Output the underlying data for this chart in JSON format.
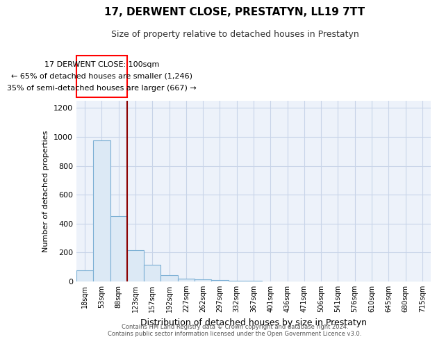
{
  "title": "17, DERWENT CLOSE, PRESTATYN, LL19 7TT",
  "subtitle": "Size of property relative to detached houses in Prestatyn",
  "xlabel": "Distribution of detached houses by size in Prestatyn",
  "ylabel": "Number of detached properties",
  "annotation_line1": "17 DERWENT CLOSE: 100sqm",
  "annotation_line2": "← 65% of detached houses are smaller (1,246)",
  "annotation_line3": "35% of semi-detached houses are larger (667) →",
  "bar_labels": [
    "18sqm",
    "53sqm",
    "88sqm",
    "123sqm",
    "157sqm",
    "192sqm",
    "227sqm",
    "262sqm",
    "297sqm",
    "332sqm",
    "367sqm",
    "401sqm",
    "436sqm",
    "471sqm",
    "506sqm",
    "541sqm",
    "576sqm",
    "610sqm",
    "645sqm",
    "680sqm",
    "715sqm"
  ],
  "bar_values": [
    75,
    975,
    450,
    215,
    115,
    45,
    20,
    15,
    10,
    5,
    3,
    0,
    0,
    0,
    0,
    0,
    0,
    0,
    0,
    0,
    0
  ],
  "bar_color": "#dce9f5",
  "bar_edgecolor": "#7bafd4",
  "red_line_x": 2.5,
  "ylim": [
    0,
    1250
  ],
  "yticks": [
    0,
    200,
    400,
    600,
    800,
    1000,
    1200
  ],
  "footer_line1": "Contains HM Land Registry data © Crown copyright and database right 2024.",
  "footer_line2": "Contains public sector information licensed under the Open Government Licence v3.0.",
  "bg_color": "#edf2fa",
  "grid_color": "#c8d4e8"
}
